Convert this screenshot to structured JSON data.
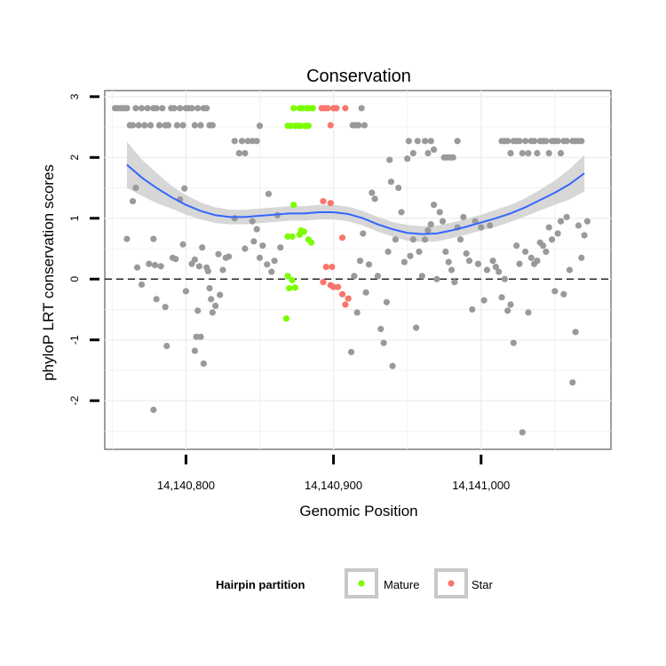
{
  "chart_data": {
    "type": "scatter",
    "title": "Conservation",
    "xlabel": "Genomic Position",
    "ylabel": "phyloP LRT conservation scores",
    "xlim": [
      14140745,
      14141088
    ],
    "ylim": [
      -2.8,
      3.1
    ],
    "x_ticks": [
      14140800,
      14140900,
      14141000
    ],
    "x_tick_labels": [
      "14,140,800",
      "14,140,900",
      "14,141,000"
    ],
    "y_ticks": [
      -2,
      -1,
      0,
      1,
      2,
      3
    ],
    "y_tick_labels": [
      "-2",
      "-1",
      "0",
      "1",
      "2",
      "3"
    ],
    "reference_line": {
      "y": 0,
      "style": "dashed"
    },
    "grid": true,
    "legend": {
      "title": "Hairpin partition",
      "position": "bottom",
      "entries": [
        {
          "label": "Mature",
          "color": "#7cfc00"
        },
        {
          "label": "Star",
          "color": "#f8766d"
        }
      ]
    },
    "colors": {
      "other": "#9a9a9a",
      "Mature": "#7cfc00",
      "Star": "#f8766d",
      "smooth": "#3366ff",
      "band": "#d0d0d0"
    },
    "series": [
      {
        "group": "other",
        "points": [
          [
            14140752,
            2.81
          ],
          [
            14140754,
            2.81
          ],
          [
            14140756,
            2.81
          ],
          [
            14140758,
            2.81
          ],
          [
            14140760,
            2.81
          ],
          [
            14140762,
            2.53
          ],
          [
            14140764,
            2.53
          ],
          [
            14140766,
            2.81
          ],
          [
            14140768,
            2.53
          ],
          [
            14140770,
            2.81
          ],
          [
            14140772,
            2.53
          ],
          [
            14140774,
            2.81
          ],
          [
            14140776,
            2.53
          ],
          [
            14140778,
            2.81
          ],
          [
            14140780,
            2.81
          ],
          [
            14140782,
            2.53
          ],
          [
            14140784,
            2.81
          ],
          [
            14140786,
            2.53
          ],
          [
            14140788,
            2.53
          ],
          [
            14140790,
            2.81
          ],
          [
            14140792,
            2.81
          ],
          [
            14140794,
            2.53
          ],
          [
            14140796,
            2.81
          ],
          [
            14140798,
            2.53
          ],
          [
            14140800,
            2.81
          ],
          [
            14140802,
            2.81
          ],
          [
            14140804,
            2.81
          ],
          [
            14140806,
            2.53
          ],
          [
            14140808,
            2.81
          ],
          [
            14140810,
            2.53
          ],
          [
            14140812,
            2.81
          ],
          [
            14140814,
            2.81
          ],
          [
            14140816,
            2.53
          ],
          [
            14140818,
            2.53
          ],
          [
            14140833,
            2.27
          ],
          [
            14140836,
            2.07
          ],
          [
            14140838,
            2.27
          ],
          [
            14140840,
            2.07
          ],
          [
            14140842,
            2.27
          ],
          [
            14140845,
            2.27
          ],
          [
            14140848,
            2.27
          ],
          [
            14140850,
            2.52
          ],
          [
            14140913,
            2.53
          ],
          [
            14140915,
            2.53
          ],
          [
            14140917,
            2.53
          ],
          [
            14140919,
            2.81
          ],
          [
            14140921,
            2.53
          ],
          [
            14140951,
            2.27
          ],
          [
            14140954,
            2.07
          ],
          [
            14140957,
            2.27
          ],
          [
            14140962,
            2.27
          ],
          [
            14140964,
            2.07
          ],
          [
            14140966,
            2.27
          ],
          [
            14140968,
            2.13
          ],
          [
            14140975,
            2.0
          ],
          [
            14140977,
            2.0
          ],
          [
            14140979,
            2.0
          ],
          [
            14140981,
            2.0
          ],
          [
            14140984,
            2.27
          ],
          [
            14141014,
            2.27
          ],
          [
            14141016,
            2.27
          ],
          [
            14141018,
            2.27
          ],
          [
            14141020,
            2.07
          ],
          [
            14141022,
            2.27
          ],
          [
            14141024,
            2.27
          ],
          [
            14141026,
            2.27
          ],
          [
            14141028,
            2.07
          ],
          [
            14141030,
            2.27
          ],
          [
            14141032,
            2.07
          ],
          [
            14141034,
            2.27
          ],
          [
            14141036,
            2.27
          ],
          [
            14141038,
            2.07
          ],
          [
            14141040,
            2.27
          ],
          [
            14141042,
            2.27
          ],
          [
            14141044,
            2.27
          ],
          [
            14141046,
            2.07
          ],
          [
            14141048,
            2.27
          ],
          [
            14141050,
            2.27
          ],
          [
            14141052,
            2.27
          ],
          [
            14141054,
            2.07
          ],
          [
            14141056,
            2.27
          ],
          [
            14141058,
            2.27
          ],
          [
            14141062,
            2.27
          ],
          [
            14141064,
            2.27
          ],
          [
            14141066,
            2.27
          ],
          [
            14141068,
            2.27
          ],
          [
            14140760,
            0.66
          ],
          [
            14140764,
            1.28
          ],
          [
            14140766,
            1.5
          ],
          [
            14140767,
            0.19
          ],
          [
            14140770,
            -0.09
          ],
          [
            14140775,
            0.25
          ],
          [
            14140778,
            0.66
          ],
          [
            14140779,
            0.23
          ],
          [
            14140780,
            -0.33
          ],
          [
            14140783,
            0.21
          ],
          [
            14140786,
            -0.46
          ],
          [
            14140787,
            -1.1
          ],
          [
            14140791,
            0.35
          ],
          [
            14140793,
            0.33
          ],
          [
            14140796,
            1.31
          ],
          [
            14140798,
            0.57
          ],
          [
            14140799,
            1.49
          ],
          [
            14140800,
            -0.2
          ],
          [
            14140804,
            0.25
          ],
          [
            14140806,
            0.32
          ],
          [
            14140806,
            -1.18
          ],
          [
            14140807,
            -0.95
          ],
          [
            14140808,
            -0.52
          ],
          [
            14140809,
            0.21
          ],
          [
            14140810,
            -0.95
          ],
          [
            14140811,
            0.52
          ],
          [
            14140812,
            -1.39
          ],
          [
            14140814,
            0.19
          ],
          [
            14140815,
            0.13
          ],
          [
            14140816,
            -0.15
          ],
          [
            14140817,
            -0.33
          ],
          [
            14140818,
            -0.55
          ],
          [
            14140820,
            -0.44
          ],
          [
            14140822,
            0.41
          ],
          [
            14140823,
            -0.26
          ],
          [
            14140825,
            0.15
          ],
          [
            14140827,
            0.35
          ],
          [
            14140829,
            0.37
          ],
          [
            14140833,
            1.0
          ],
          [
            14140840,
            0.5
          ],
          [
            14140845,
            0.95
          ],
          [
            14140846,
            0.62
          ],
          [
            14140848,
            0.82
          ],
          [
            14140850,
            0.35
          ],
          [
            14140852,
            0.55
          ],
          [
            14140855,
            0.24
          ],
          [
            14140856,
            1.4
          ],
          [
            14140858,
            0.12
          ],
          [
            14140860,
            0.3
          ],
          [
            14140862,
            1.05
          ],
          [
            14140864,
            0.52
          ],
          [
            14140912,
            -1.2
          ],
          [
            14140914,
            0.05
          ],
          [
            14140916,
            -0.55
          ],
          [
            14140918,
            0.3
          ],
          [
            14140920,
            0.75
          ],
          [
            14140922,
            -0.22
          ],
          [
            14140924,
            0.24
          ],
          [
            14140926,
            1.42
          ],
          [
            14140928,
            1.32
          ],
          [
            14140930,
            0.05
          ],
          [
            14140932,
            -0.82
          ],
          [
            14140934,
            -1.05
          ],
          [
            14140936,
            -0.38
          ],
          [
            14140937,
            0.45
          ],
          [
            14140938,
            1.96
          ],
          [
            14140939,
            1.6
          ],
          [
            14140940,
            -1.43
          ],
          [
            14140942,
            0.65
          ],
          [
            14140944,
            1.5
          ],
          [
            14140946,
            1.1
          ],
          [
            14140948,
            0.28
          ],
          [
            14140950,
            1.98
          ],
          [
            14140952,
            0.38
          ],
          [
            14140954,
            0.65
          ],
          [
            14140956,
            -0.8
          ],
          [
            14140958,
            0.45
          ],
          [
            14140960,
            0.05
          ],
          [
            14140962,
            0.65
          ],
          [
            14140964,
            0.8
          ],
          [
            14140966,
            0.9
          ],
          [
            14140968,
            1.22
          ],
          [
            14140970,
            0.0
          ],
          [
            14140972,
            1.1
          ],
          [
            14140974,
            0.95
          ],
          [
            14140976,
            0.45
          ],
          [
            14140978,
            0.28
          ],
          [
            14140980,
            0.15
          ],
          [
            14140982,
            -0.05
          ],
          [
            14140984,
            0.85
          ],
          [
            14140986,
            0.65
          ],
          [
            14140988,
            1.02
          ],
          [
            14140990,
            0.42
          ],
          [
            14140992,
            0.3
          ],
          [
            14140994,
            -0.5
          ],
          [
            14140996,
            0.95
          ],
          [
            14140998,
            0.25
          ],
          [
            14141000,
            0.85
          ],
          [
            14141002,
            -0.35
          ],
          [
            14141004,
            0.15
          ],
          [
            14141006,
            0.88
          ],
          [
            14141008,
            0.3
          ],
          [
            14141010,
            0.2
          ],
          [
            14141012,
            0.12
          ],
          [
            14141014,
            -0.3
          ],
          [
            14141016,
            0.0
          ],
          [
            14141018,
            -0.52
          ],
          [
            14141020,
            -0.42
          ],
          [
            14141022,
            -1.05
          ],
          [
            14141024,
            0.55
          ],
          [
            14141026,
            0.25
          ],
          [
            14141028,
            -2.52
          ],
          [
            14141030,
            0.45
          ],
          [
            14141032,
            -0.55
          ],
          [
            14141034,
            0.35
          ],
          [
            14141036,
            0.25
          ],
          [
            14141038,
            0.3
          ],
          [
            14141040,
            0.6
          ],
          [
            14141042,
            0.55
          ],
          [
            14141044,
            0.45
          ],
          [
            14141046,
            0.85
          ],
          [
            14141048,
            0.65
          ],
          [
            14141050,
            -0.2
          ],
          [
            14141052,
            0.75
          ],
          [
            14141054,
            0.95
          ],
          [
            14141056,
            -0.25
          ],
          [
            14141058,
            1.02
          ],
          [
            14141060,
            0.15
          ],
          [
            14141062,
            -1.7
          ],
          [
            14141064,
            -0.87
          ],
          [
            14141066,
            0.88
          ],
          [
            14141068,
            0.35
          ],
          [
            14141070,
            0.72
          ],
          [
            14141072,
            0.95
          ],
          [
            14140778,
            -2.15
          ]
        ]
      },
      {
        "group": "Mature",
        "points": [
          [
            14140869,
            2.52
          ],
          [
            14140871,
            2.52
          ],
          [
            14140873,
            2.81
          ],
          [
            14140874,
            2.52
          ],
          [
            14140876,
            2.52
          ],
          [
            14140877,
            2.81
          ],
          [
            14140878,
            2.52
          ],
          [
            14140879,
            2.81
          ],
          [
            14140881,
            2.52
          ],
          [
            14140882,
            2.81
          ],
          [
            14140883,
            2.52
          ],
          [
            14140884,
            2.81
          ],
          [
            14140886,
            2.81
          ],
          [
            14140873,
            1.22
          ],
          [
            14140869,
            0.7
          ],
          [
            14140872,
            0.7
          ],
          [
            14140877,
            0.73
          ],
          [
            14140878,
            0.8
          ],
          [
            14140880,
            0.78
          ],
          [
            14140883,
            0.65
          ],
          [
            14140885,
            0.6
          ],
          [
            14140869,
            0.05
          ],
          [
            14140870,
            -0.15
          ],
          [
            14140872,
            -0.02
          ],
          [
            14140874,
            -0.14
          ],
          [
            14140868,
            -0.65
          ]
        ]
      },
      {
        "group": "Star",
        "points": [
          [
            14140892,
            2.81
          ],
          [
            14140894,
            2.81
          ],
          [
            14140896,
            2.81
          ],
          [
            14140898,
            2.53
          ],
          [
            14140900,
            2.81
          ],
          [
            14140902,
            2.81
          ],
          [
            14140908,
            2.81
          ],
          [
            14140893,
            1.28
          ],
          [
            14140898,
            1.25
          ],
          [
            14140906,
            0.68
          ],
          [
            14140895,
            0.2
          ],
          [
            14140899,
            0.2
          ],
          [
            14140893,
            -0.05
          ],
          [
            14140898,
            -0.1
          ],
          [
            14140900,
            -0.13
          ],
          [
            14140903,
            -0.13
          ],
          [
            14140906,
            -0.25
          ],
          [
            14140910,
            -0.32
          ],
          [
            14140908,
            -0.42
          ]
        ]
      }
    ],
    "smooth_curve": {
      "x": [
        14140760,
        14140770,
        14140780,
        14140790,
        14140800,
        14140810,
        14140820,
        14140830,
        14140840,
        14140850,
        14140860,
        14140870,
        14140880,
        14140890,
        14140900,
        14140910,
        14140920,
        14140930,
        14140940,
        14140950,
        14140960,
        14140970,
        14140980,
        14140990,
        14141000,
        14141010,
        14141020,
        14141030,
        14141040,
        14141050,
        14141060,
        14141070
      ],
      "y": [
        1.88,
        1.67,
        1.5,
        1.35,
        1.22,
        1.12,
        1.05,
        1.02,
        1.02,
        1.04,
        1.06,
        1.08,
        1.08,
        1.1,
        1.1,
        1.07,
        1.0,
        0.9,
        0.82,
        0.76,
        0.74,
        0.75,
        0.8,
        0.86,
        0.93,
        1.0,
        1.08,
        1.18,
        1.3,
        1.42,
        1.56,
        1.74
      ],
      "band_halfwidth": [
        0.38,
        0.3,
        0.25,
        0.19,
        0.16,
        0.14,
        0.13,
        0.12,
        0.12,
        0.12,
        0.12,
        0.12,
        0.12,
        0.12,
        0.12,
        0.12,
        0.12,
        0.12,
        0.12,
        0.13,
        0.13,
        0.13,
        0.13,
        0.13,
        0.13,
        0.14,
        0.14,
        0.15,
        0.17,
        0.2,
        0.25,
        0.3
      ]
    }
  }
}
